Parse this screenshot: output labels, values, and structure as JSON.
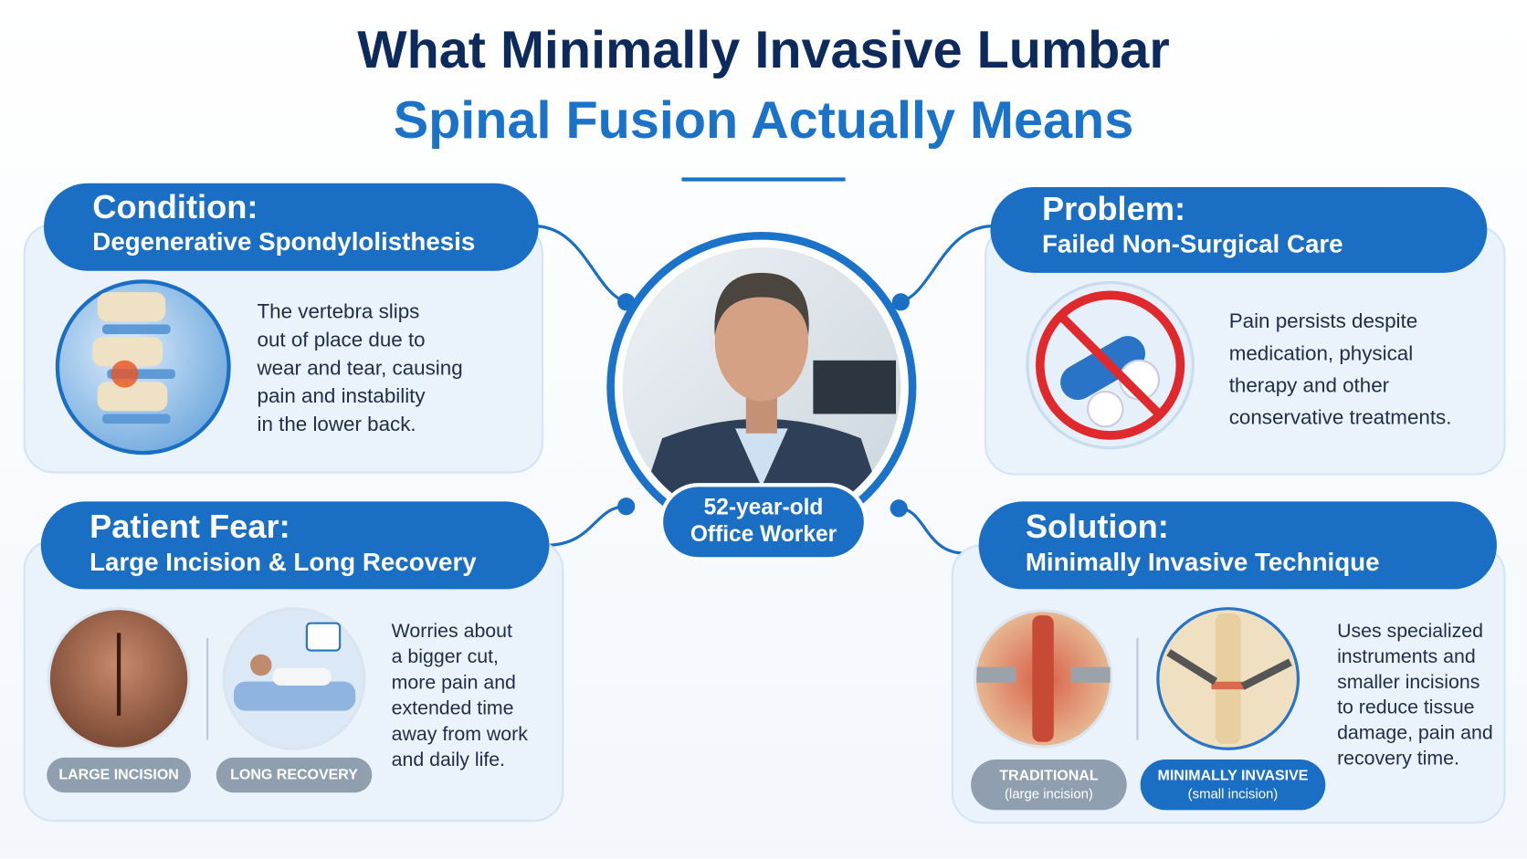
{
  "title": {
    "line1": "What Minimally Invasive Lumbar",
    "line2": "Spinal Fusion Actually Means"
  },
  "center": {
    "label": [
      "52-year-old",
      "Office Worker"
    ]
  },
  "panels": [
    {
      "heading": "Condition:",
      "subheading": "Degenerative Spondylolisthesis",
      "body": [
        "The vertebra slips",
        "out of place due to",
        "wear and tear, causing",
        "pain and instability",
        "in the lower back."
      ]
    },
    {
      "heading": "Problem:",
      "subheading": "Failed Non-Surgical Care",
      "body": [
        "Pain persists despite",
        "medication, physical",
        "therapy and other",
        "conservative treatments."
      ]
    },
    {
      "heading": "Patient Fear:",
      "subheading": "Large Incision & Long Recovery",
      "body": [
        "Worries about",
        "a bigger cut,",
        "more pain and",
        "extended time",
        "away from work",
        "and daily life."
      ],
      "tags": [
        {
          "label": "LARGE INCISION"
        },
        {
          "label": "LONG RECOVERY"
        }
      ]
    },
    {
      "heading": "Solution:",
      "subheading": "Minimally Invasive Technique",
      "body": [
        "Uses specialized",
        "instruments and",
        "smaller incisions",
        "to reduce tissue",
        "damage, pain and",
        "recovery time."
      ],
      "tags": [
        {
          "label": "TRADITIONAL",
          "note": "(large incision)"
        },
        {
          "label": "MINIMALLY INVASIVE",
          "note": "(small incision)"
        }
      ]
    }
  ]
}
